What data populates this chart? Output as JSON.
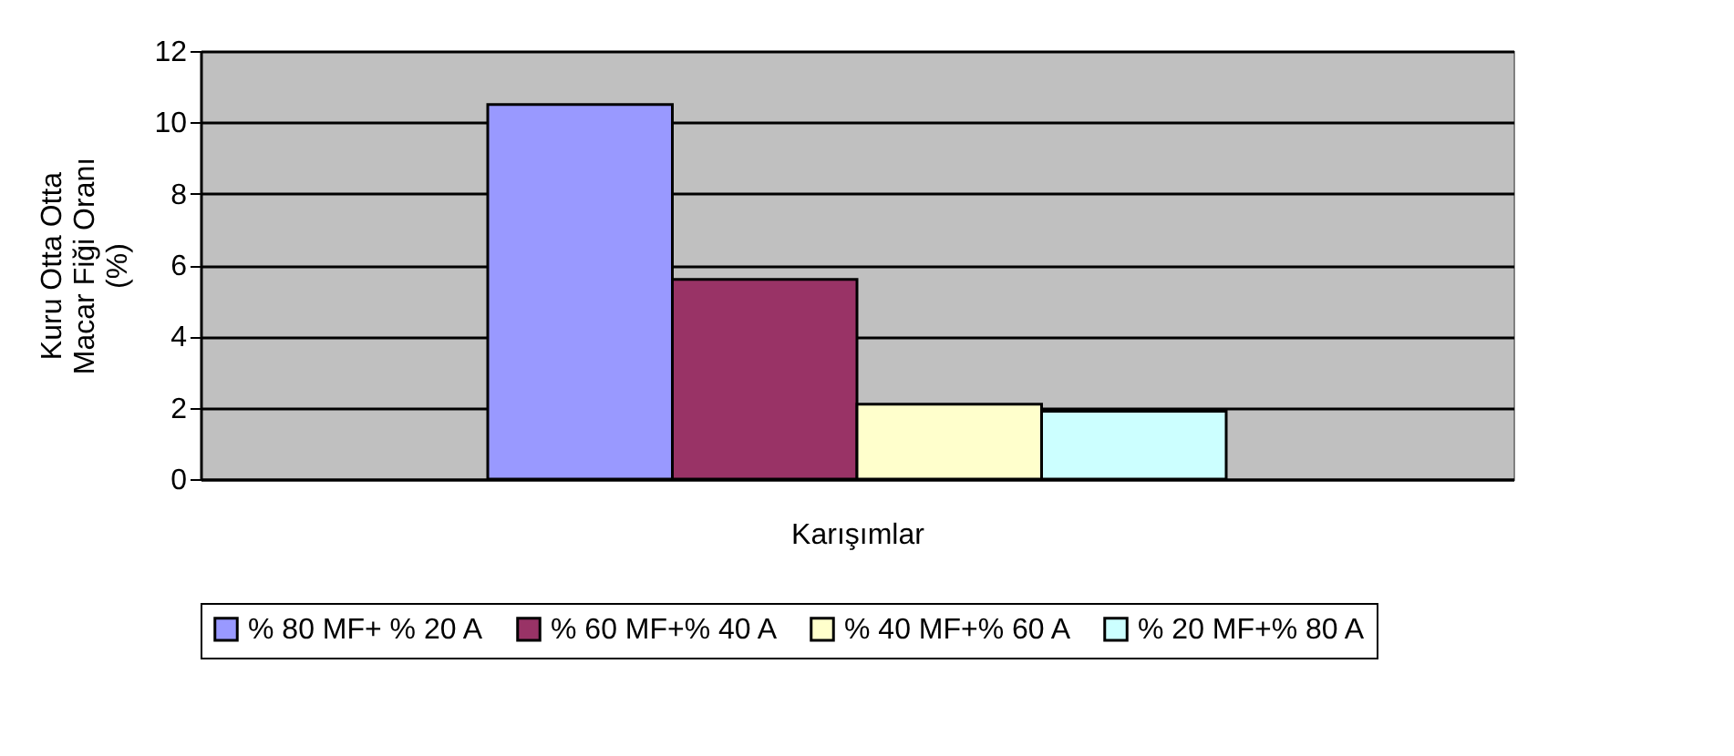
{
  "chart_data": {
    "type": "bar",
    "categories": [
      null
    ],
    "xlabel": "Karışımlar",
    "ylabel": "Kuru Otta  Otta\nMacar Fiği Oranı\n(%)",
    "series": [
      {
        "name": "% 80 MF+ % 20 A",
        "color": "#9999ff",
        "values": [
          10.5
        ]
      },
      {
        "name": "% 60 MF+% 40 A",
        "color": "#993366",
        "values": [
          5.6
        ]
      },
      {
        "name": "% 40 MF+% 60 A",
        "color": "#ffffcc",
        "values": [
          2.1
        ]
      },
      {
        "name": "% 20 MF+% 80 A",
        "color": "#ccffff",
        "values": [
          1.9
        ]
      }
    ],
    "ylim": [
      0,
      12
    ],
    "yticks": [
      0,
      2,
      4,
      6,
      8,
      10,
      12
    ],
    "grid": "y",
    "legend": "bottom"
  }
}
